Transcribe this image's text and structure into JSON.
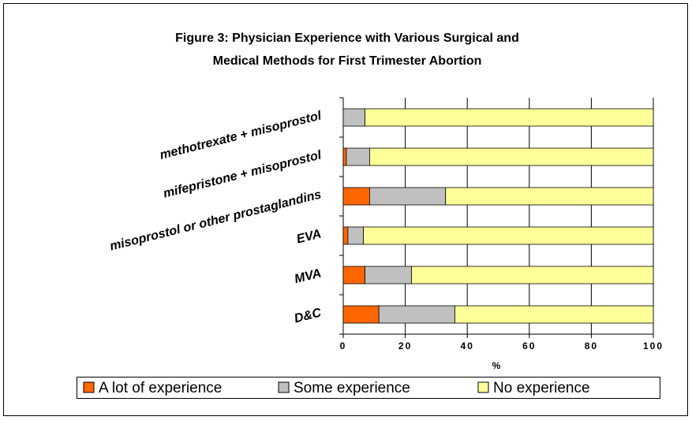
{
  "chart_data": {
    "type": "stacked_bar_horizontal",
    "title": "Figure 3: Physician Experience with Various Surgical and",
    "subtitle": "Medical Methods for First Trimester Abortion",
    "x_label": "%",
    "categories": [
      "D&C",
      "MVA",
      "EVA",
      "misoprostol or other prostaglandins",
      "mifepristone + misoprostol",
      "methotrexate + misoprostol"
    ],
    "series": [
      {
        "name": "A lot of experience",
        "color": "#ff6600",
        "values": [
          11.5,
          7,
          1.5,
          8.5,
          1,
          0
        ]
      },
      {
        "name": "Some experience",
        "color": "#c0c0c0",
        "values": [
          24.5,
          15,
          5,
          24.5,
          7.5,
          7
        ]
      },
      {
        "name": "No experience",
        "color": "#ffff99",
        "values": [
          64,
          78,
          93.5,
          67,
          91.5,
          93
        ]
      }
    ],
    "xlim": [
      0,
      100
    ],
    "xticks": [
      0,
      20,
      40,
      60,
      80,
      100
    ],
    "grid": true,
    "legend": "bottom"
  }
}
